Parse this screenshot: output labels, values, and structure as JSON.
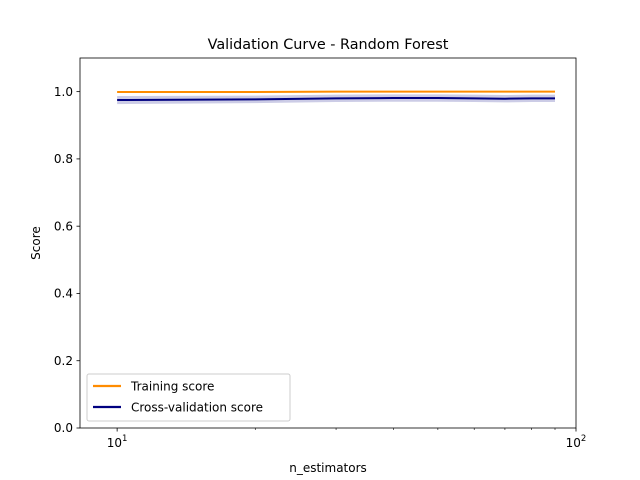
{
  "chart_data": {
    "type": "line",
    "title": "Validation Curve - Random Forest",
    "xlabel": "n_estimators",
    "ylabel": "Score",
    "xscale": "log",
    "xlim": [
      8.3,
      100
    ],
    "ylim": [
      0.0,
      1.1
    ],
    "x": [
      10,
      20,
      30,
      40,
      50,
      60,
      70,
      80,
      90
    ],
    "series": [
      {
        "name": "Training score",
        "color": "#ff8c00",
        "values": [
          0.999,
          0.999,
          1.0,
          1.0,
          1.0,
          1.0,
          1.0,
          1.0,
          1.0
        ],
        "band": [
          [
            0.998,
            1.0
          ],
          [
            0.998,
            1.0
          ],
          [
            0.999,
            1.0
          ],
          [
            0.999,
            1.0
          ],
          [
            0.999,
            1.0
          ],
          [
            0.999,
            1.0
          ],
          [
            0.999,
            1.0
          ],
          [
            0.999,
            1.0
          ],
          [
            0.999,
            1.0
          ]
        ]
      },
      {
        "name": "Cross-validation score",
        "color": "#000080",
        "values": [
          0.975,
          0.977,
          0.98,
          0.981,
          0.981,
          0.98,
          0.979,
          0.98,
          0.98
        ],
        "band": [
          [
            0.963,
            0.987
          ],
          [
            0.966,
            0.988
          ],
          [
            0.969,
            0.991
          ],
          [
            0.97,
            0.992
          ],
          [
            0.97,
            0.992
          ],
          [
            0.969,
            0.991
          ],
          [
            0.968,
            0.99
          ],
          [
            0.969,
            0.991
          ],
          [
            0.969,
            0.991
          ]
        ]
      }
    ],
    "yticks": [
      0.0,
      0.2,
      0.4,
      0.6,
      0.8,
      1.0
    ],
    "ytick_labels": [
      "0.0",
      "0.2",
      "0.4",
      "0.6",
      "0.8",
      "1.0"
    ],
    "xticks": [
      10,
      100
    ],
    "xtick_labels": [
      {
        "base": "10",
        "exp": "1"
      },
      {
        "base": "10",
        "exp": "2"
      }
    ],
    "x_minor_ticks": [
      20,
      30,
      40,
      50,
      60,
      70,
      80,
      90
    ],
    "grid": false,
    "legend": "lower-left"
  }
}
